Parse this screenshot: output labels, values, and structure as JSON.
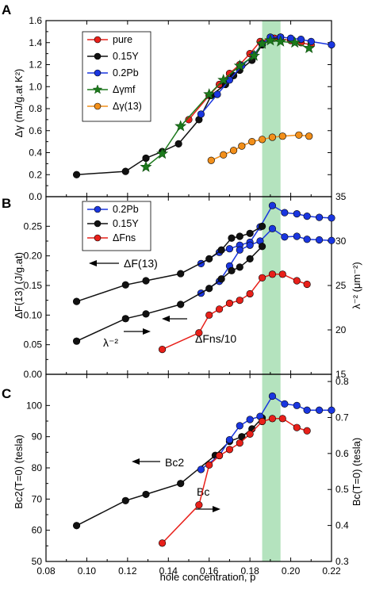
{
  "figure": {
    "xlabel": "hole concentration,  p",
    "xticks": [
      "0.08",
      "0.10",
      "0.12",
      "0.14",
      "0.16",
      "0.18",
      "0.20",
      "0.22"
    ],
    "xrange": [
      0.08,
      0.22
    ],
    "band": [
      0.186,
      0.195
    ],
    "band_color": "#9bd9a8"
  },
  "panels": [
    {
      "letter": "A",
      "ylabel": "Δγ  (mJ/g.at K²)",
      "yticks": [
        "0.0",
        "0.2",
        "0.4",
        "0.6",
        "0.8",
        "1.0",
        "1.2",
        "1.4",
        "1.6"
      ],
      "yrange": [
        0,
        1.6
      ],
      "legend": [
        "pure",
        "0.15Y",
        "0.2Pb",
        "Δγmf",
        "Δγ(13)"
      ]
    },
    {
      "letter": "B",
      "ylabel": "ΔF(13)  (J/g.at)",
      "ylabel_right": "λ⁻²  (μm⁻²)",
      "yticks": [
        "0.00",
        "0.05",
        "0.10",
        "0.15",
        "0.20",
        "0.25"
      ],
      "yticks_right": [
        "15",
        "20",
        "25",
        "30",
        "35"
      ],
      "yrange": [
        0,
        0.3
      ],
      "yrange_right": [
        15,
        35
      ],
      "legend": [
        "0.2Pb",
        "0.15Y",
        "ΔFns"
      ],
      "annotations": [
        "ΔF(13)",
        "λ⁻²",
        "ΔFns/10"
      ]
    },
    {
      "letter": "C",
      "ylabel": "Bc2(T=0)  (tesla)",
      "ylabel_right": "Bc(T=0)  (tesla)",
      "yticks": [
        "50",
        "60",
        "70",
        "80",
        "90",
        "100"
      ],
      "yticks_right": [
        "0.3",
        "0.4",
        "0.5",
        "0.6",
        "0.7",
        "0.8"
      ],
      "yrange": [
        50,
        110
      ],
      "yrange_right": [
        0.3,
        0.82
      ],
      "annotations": [
        "Bc2",
        "Bc"
      ]
    }
  ],
  "chart_data": [
    {
      "type": "line",
      "title": "A",
      "xlabel": "hole concentration,  p",
      "ylabel": "Δγ  (mJ/g.at K²)",
      "xlim": [
        0.08,
        0.22
      ],
      "ylim": [
        0,
        1.6
      ],
      "series": [
        {
          "name": "pure",
          "color": "#e8201a",
          "marker": "circle",
          "x": [
            0.15,
            0.16,
            0.165,
            0.17,
            0.175,
            0.18,
            0.185,
            0.19,
            0.192,
            0.2,
            0.205,
            0.21
          ],
          "y": [
            0.7,
            0.92,
            1.02,
            1.12,
            1.2,
            1.3,
            1.41,
            1.44,
            1.44,
            1.42,
            1.4,
            1.38
          ]
        },
        {
          "name": "0.15Y",
          "color": "#111111",
          "marker": "circle",
          "x": [
            0.095,
            0.119,
            0.129,
            0.137,
            0.145,
            0.155,
            0.161,
            0.168,
            0.172,
            0.175,
            0.181,
            0.186,
            0.19,
            0.195
          ],
          "y": [
            0.2,
            0.23,
            0.35,
            0.41,
            0.48,
            0.7,
            0.92,
            1.02,
            1.1,
            1.15,
            1.24,
            1.38,
            1.43,
            1.45
          ]
        },
        {
          "name": "0.2Pb",
          "color": "#1a36e0",
          "marker": "circle",
          "x": [
            0.156,
            0.164,
            0.17,
            0.176,
            0.182,
            0.186,
            0.19,
            0.195,
            0.2,
            0.205,
            0.21,
            0.22
          ],
          "y": [
            0.75,
            0.93,
            1.06,
            1.19,
            1.29,
            1.39,
            1.45,
            1.45,
            1.44,
            1.43,
            1.41,
            1.38
          ]
        },
        {
          "name": "Δγmf",
          "color": "#1c7a1c",
          "marker": "star",
          "x": [
            0.129,
            0.137,
            0.146,
            0.16,
            0.167,
            0.175,
            0.182,
            0.186,
            0.19,
            0.195,
            0.202,
            0.209
          ],
          "y": [
            0.27,
            0.39,
            0.64,
            0.93,
            1.06,
            1.19,
            1.28,
            1.39,
            1.42,
            1.41,
            1.4,
            1.35
          ]
        },
        {
          "name": "Δγ(13)",
          "color": "#f28f1a",
          "marker": "circle",
          "x": [
            0.161,
            0.167,
            0.172,
            0.176,
            0.181,
            0.186,
            0.191,
            0.196,
            0.204,
            0.209
          ],
          "y": [
            0.33,
            0.38,
            0.42,
            0.46,
            0.5,
            0.52,
            0.54,
            0.55,
            0.56,
            0.55
          ]
        }
      ]
    },
    {
      "type": "line",
      "title": "B",
      "xlabel": "hole concentration,  p",
      "ylabel": "ΔF(13)  (J/g.at)",
      "ylabel_right": "λ⁻²  (μm⁻²)",
      "xlim": [
        0.08,
        0.22
      ],
      "ylim": [
        0,
        0.3
      ],
      "ylim_right": [
        15,
        35
      ],
      "series": [
        {
          "name": "0.2Pb",
          "axis": "left",
          "color": "#1a36e0",
          "marker": "circle",
          "x": [
            0.156,
            0.165,
            0.17,
            0.175,
            0.18,
            0.185,
            0.191,
            0.197,
            0.203,
            0.208,
            0.214,
            0.22
          ],
          "y": [
            0.187,
            0.206,
            0.212,
            0.218,
            0.223,
            0.249,
            0.285,
            0.273,
            0.271,
            0.267,
            0.265,
            0.264
          ]
        },
        {
          "name": "0.15Y",
          "axis": "left",
          "color": "#111111",
          "marker": "circle",
          "x": [
            0.095,
            0.119,
            0.129,
            0.146,
            0.16,
            0.166,
            0.171,
            0.175,
            0.18,
            0.186
          ],
          "y": [
            0.123,
            0.151,
            0.158,
            0.17,
            0.195,
            0.21,
            0.23,
            0.233,
            0.238,
            0.25
          ]
        },
        {
          "name": "λ⁻² (0.2Pb)",
          "axis": "left",
          "color": "#1a36e0",
          "marker": "circle",
          "x": [
            0.156,
            0.165,
            0.17,
            0.175,
            0.18,
            0.185,
            0.191,
            0.197,
            0.203,
            0.208,
            0.214,
            0.22
          ],
          "y": [
            0.137,
            0.157,
            0.183,
            0.21,
            0.218,
            0.225,
            0.246,
            0.232,
            0.233,
            0.228,
            0.227,
            0.226
          ]
        },
        {
          "name": "λ⁻² (0.15Y)",
          "axis": "left",
          "color": "#111111",
          "marker": "circle",
          "x": [
            0.095,
            0.119,
            0.129,
            0.146,
            0.16,
            0.166,
            0.171,
            0.175,
            0.18,
            0.186
          ],
          "y": [
            0.056,
            0.094,
            0.102,
            0.118,
            0.145,
            0.161,
            0.175,
            0.181,
            0.195,
            0.216
          ]
        },
        {
          "name": "ΔFns",
          "axis": "left",
          "color": "#e8201a",
          "marker": "circle",
          "x": [
            0.137,
            0.155,
            0.16,
            0.165,
            0.17,
            0.175,
            0.18,
            0.186,
            0.191,
            0.196,
            0.203,
            0.208
          ],
          "y": [
            0.042,
            0.07,
            0.1,
            0.11,
            0.12,
            0.125,
            0.136,
            0.163,
            0.169,
            0.169,
            0.158,
            0.152
          ]
        }
      ]
    },
    {
      "type": "line",
      "title": "C",
      "xlabel": "hole concentration,  p",
      "ylabel": "Bc2(T=0)  (tesla)",
      "ylabel_right": "Bc(T=0)  (tesla)",
      "xlim": [
        0.08,
        0.22
      ],
      "ylim": [
        50,
        110
      ],
      "ylim_right": [
        0.3,
        0.82
      ],
      "series": [
        {
          "name": "Bc2 (0.15Y)",
          "axis": "left",
          "color": "#111111",
          "marker": "circle",
          "x": [
            0.095,
            0.119,
            0.129,
            0.146,
            0.163,
            0.17,
            0.176,
            0.181,
            0.186
          ],
          "y": [
            61.5,
            69.5,
            71.5,
            75.0,
            84.0,
            88.5,
            90.0,
            92.5,
            96.0
          ]
        },
        {
          "name": "Bc2 (0.2Pb)",
          "axis": "left",
          "color": "#1a36e0",
          "marker": "circle",
          "x": [
            0.156,
            0.165,
            0.17,
            0.175,
            0.18,
            0.185,
            0.191,
            0.197,
            0.203,
            0.208,
            0.214,
            0.22
          ],
          "y": [
            79.5,
            84.0,
            89.0,
            93.5,
            95.5,
            96.5,
            103.0,
            100.5,
            100.0,
            98.5,
            98.5,
            98.5
          ]
        },
        {
          "name": "Bc",
          "axis": "right",
          "color": "#e8201a",
          "marker": "circle",
          "x": [
            0.137,
            0.155,
            0.16,
            0.165,
            0.17,
            0.175,
            0.18,
            0.186,
            0.191,
            0.196,
            0.203,
            0.208
          ],
          "y": [
            0.351,
            0.457,
            0.568,
            0.594,
            0.611,
            0.629,
            0.654,
            0.689,
            0.697,
            0.697,
            0.672,
            0.663
          ]
        }
      ]
    }
  ]
}
